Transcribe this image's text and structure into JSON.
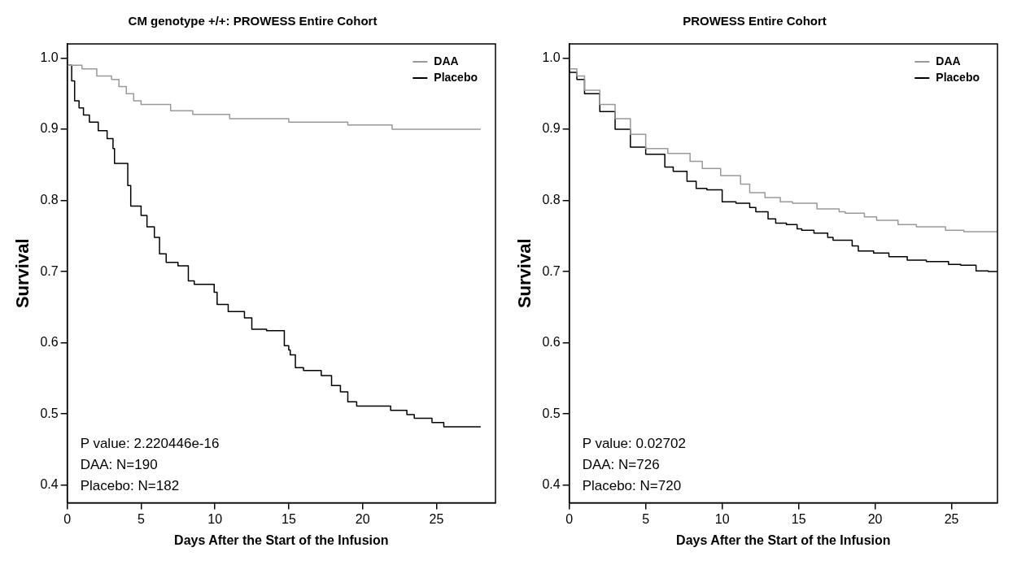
{
  "chart_data": [
    {
      "type": "step",
      "title": "CM genotype +/+: PROWESS Entire Cohort",
      "xlabel": "Days After the Start of the Infusion",
      "ylabel": "Survival",
      "xlim": [
        0,
        29
      ],
      "ylim": [
        0.375,
        1.02
      ],
      "xticks": [
        0,
        5,
        10,
        15,
        20,
        25
      ],
      "yticks": [
        0.4,
        0.5,
        0.6,
        0.7,
        0.8,
        0.9,
        {
          "value": 1,
          "label": "1.0"
        }
      ],
      "grid": false,
      "legend": "top right",
      "annotations": [
        "P value: 2.220446e-16",
        "DAA: N=190",
        "Placebo: N=182"
      ],
      "series": [
        {
          "name": "DAA",
          "color": "#999999",
          "x": [
            0,
            1,
            2,
            3,
            3.5,
            4,
            4.5,
            5,
            7,
            8.5,
            9,
            11,
            12.5,
            15,
            19,
            19.5,
            22,
            22.5,
            28
          ],
          "values": [
            1.0,
            0.99,
            0.985,
            0.975,
            0.97,
            0.96,
            0.95,
            0.94,
            0.935,
            0.926,
            0.921,
            0.921,
            0.915,
            0.915,
            0.91,
            0.906,
            0.906,
            0.9,
            0.9
          ]
        },
        {
          "name": "Placebo",
          "color": "#000000",
          "x": [
            0,
            0.3,
            0.5,
            0.8,
            1.1,
            1.5,
            2.1,
            2.7,
            3.1,
            3.2,
            4.1,
            4.3,
            5.0,
            5.4,
            5.9,
            6.25,
            6.7,
            7.5,
            8.2,
            8.6,
            9.95,
            10.15,
            10.9,
            12.0,
            12.5,
            13.5,
            14.7,
            15.0,
            15.1,
            15.45,
            16.0,
            17.2,
            17.9,
            18.5,
            19.0,
            19.6,
            21.9,
            23.0,
            23.5,
            24.7,
            25.5,
            26.6,
            28.0
          ],
          "values": [
            1.0,
            0.99,
            0.968,
            0.94,
            0.93,
            0.92,
            0.91,
            0.898,
            0.887,
            0.873,
            0.852,
            0.821,
            0.792,
            0.779,
            0.763,
            0.748,
            0.725,
            0.713,
            0.708,
            0.687,
            0.682,
            0.671,
            0.654,
            0.644,
            0.635,
            0.619,
            0.617,
            0.596,
            0.59,
            0.583,
            0.565,
            0.561,
            0.554,
            0.54,
            0.531,
            0.517,
            0.511,
            0.505,
            0.499,
            0.494,
            0.488,
            0.482,
            0.482
          ]
        }
      ]
    },
    {
      "type": "step",
      "title": "PROWESS Entire Cohort",
      "xlabel": "Days After the Start of the Infusion",
      "ylabel": "Survival",
      "xlim": [
        0,
        28
      ],
      "ylim": [
        0.375,
        1.02
      ],
      "xticks": [
        0,
        5,
        10,
        15,
        20,
        25
      ],
      "yticks": [
        0.4,
        0.5,
        0.6,
        0.7,
        0.8,
        0.9,
        {
          "value": 1,
          "label": "1.0"
        }
      ],
      "grid": false,
      "legend": "top right",
      "annotations": [
        "P value: 0.02702",
        "DAA: N=726",
        "Placebo: N=720"
      ],
      "series": [
        {
          "name": "DAA",
          "color": "#999999",
          "x": [
            0,
            0.5,
            1,
            2,
            3,
            4,
            5,
            6.45,
            7.9,
            8.7,
            9.9,
            11.2,
            11.8,
            12.8,
            13.8,
            14.6,
            16.2,
            17.65,
            18.05,
            19.3,
            20.1,
            21.5,
            22.7,
            24.6,
            25.8,
            26.6,
            28
          ],
          "values": [
            1.0,
            0.985,
            0.975,
            0.955,
            0.935,
            0.915,
            0.893,
            0.873,
            0.866,
            0.855,
            0.845,
            0.835,
            0.823,
            0.811,
            0.804,
            0.798,
            0.796,
            0.788,
            0.784,
            0.782,
            0.777,
            0.772,
            0.766,
            0.763,
            0.758,
            0.756,
            0.756
          ]
        },
        {
          "name": "Placebo",
          "color": "#000000",
          "x": [
            0,
            0.5,
            1,
            2,
            3,
            4,
            5,
            6.25,
            6.8,
            7.7,
            8.3,
            9.0,
            10.0,
            10.9,
            11.8,
            12.2,
            13.0,
            13.5,
            14.2,
            14.9,
            15.2,
            16.0,
            16.9,
            17.25,
            18.5,
            18.9,
            19.9,
            20.9,
            22.1,
            23.35,
            24.8,
            25.6,
            26.6,
            27.4,
            28
          ],
          "values": [
            1.0,
            0.98,
            0.97,
            0.95,
            0.925,
            0.9,
            0.875,
            0.865,
            0.847,
            0.841,
            0.827,
            0.817,
            0.815,
            0.798,
            0.796,
            0.79,
            0.784,
            0.774,
            0.768,
            0.766,
            0.76,
            0.758,
            0.754,
            0.748,
            0.744,
            0.736,
            0.729,
            0.726,
            0.721,
            0.716,
            0.714,
            0.71,
            0.709,
            0.701,
            0.7
          ]
        }
      ]
    }
  ]
}
